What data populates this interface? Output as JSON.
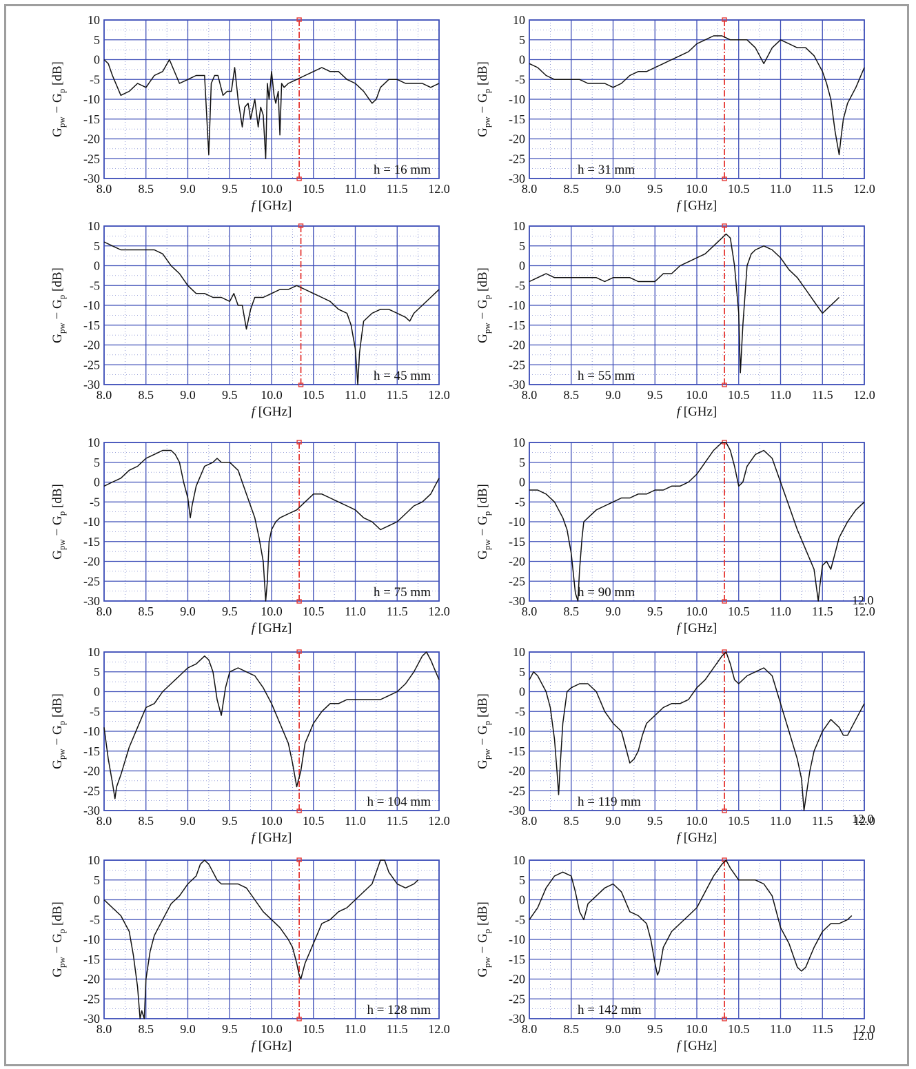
{
  "colors": {
    "grid": "#3f4fb8",
    "curve": "#111111",
    "marker": "#e53935",
    "frame": "#9e9e9e"
  },
  "ylabel_parts": {
    "a": "G",
    "a_sub": "pw",
    "dash": " − ",
    "b": "G",
    "b_sub": "p",
    "unit": " [dB]"
  },
  "xlabel_parts": {
    "f": "f",
    "unit": " [GHz]"
  },
  "x_tick_labels": [
    "8.0",
    "8.5",
    "9.0",
    "9.5",
    "10.0",
    "10.5",
    "11.0",
    "11.5",
    "12.0"
  ],
  "y_tick_labels": [
    "10",
    "5",
    "0",
    "-5",
    "-10",
    "-15",
    "-20",
    "-25",
    "-30"
  ],
  "stray_labels": [
    "12.0",
    "12.0",
    "12.0"
  ],
  "chart_data": [
    {
      "type": "line",
      "annotation": "h = 16 mm",
      "xlim": [
        8.0,
        12.0
      ],
      "ylim": [
        -30,
        10
      ],
      "x_ticks": [
        8.0,
        8.5,
        9.0,
        9.5,
        10.0,
        10.5,
        11.0,
        11.5,
        12.0
      ],
      "y_ticks": [
        10,
        5,
        0,
        -5,
        -10,
        -15,
        -20,
        -25,
        -30
      ],
      "grid": true,
      "marker_x": 10.33,
      "x": [
        8.0,
        8.05,
        8.1,
        8.2,
        8.3,
        8.4,
        8.5,
        8.6,
        8.7,
        8.78,
        8.9,
        9.0,
        9.1,
        9.2,
        9.25,
        9.28,
        9.32,
        9.36,
        9.42,
        9.47,
        9.52,
        9.56,
        9.6,
        9.65,
        9.68,
        9.72,
        9.75,
        9.8,
        9.84,
        9.87,
        9.9,
        9.93,
        9.95,
        9.97,
        10.0,
        10.03,
        10.05,
        10.08,
        10.1,
        10.12,
        10.15,
        10.2,
        10.3,
        10.4,
        10.5,
        10.6,
        10.7,
        10.8,
        10.9,
        11.0,
        11.1,
        11.2,
        11.25,
        11.3,
        11.4,
        11.5,
        11.6,
        11.7,
        11.8,
        11.9,
        12.0
      ],
      "y": [
        0,
        -1,
        -4,
        -9,
        -8,
        -6,
        -7,
        -4,
        -3,
        0,
        -6,
        -5,
        -4,
        -4,
        -24,
        -6,
        -4,
        -4,
        -9,
        -8,
        -8,
        -2,
        -10,
        -17,
        -12,
        -11,
        -15,
        -10,
        -17,
        -12,
        -14,
        -25,
        -6,
        -10,
        -3,
        -9,
        -11,
        -8,
        -19,
        -6,
        -7,
        -6,
        -5,
        -4,
        -3,
        -2,
        -3,
        -3,
        -5,
        -6,
        -8,
        -11,
        -10,
        -7,
        -5,
        -5,
        -6,
        -6,
        -6,
        -7,
        -6
      ]
    },
    {
      "type": "line",
      "annotation": "h = 31 mm",
      "xlim": [
        8.0,
        12.0
      ],
      "ylim": [
        -30,
        10
      ],
      "x_ticks": [
        8.0,
        8.5,
        9.0,
        9.5,
        10.0,
        10.5,
        11.0,
        11.5,
        12.0
      ],
      "y_ticks": [
        10,
        5,
        0,
        -5,
        -10,
        -15,
        -20,
        -25,
        -30
      ],
      "grid": true,
      "marker_x": 10.33,
      "x": [
        8.0,
        8.1,
        8.2,
        8.3,
        8.4,
        8.5,
        8.6,
        8.7,
        8.8,
        8.9,
        9.0,
        9.1,
        9.2,
        9.3,
        9.4,
        9.5,
        9.6,
        9.7,
        9.8,
        9.9,
        10.0,
        10.1,
        10.2,
        10.3,
        10.4,
        10.5,
        10.6,
        10.7,
        10.8,
        10.9,
        11.0,
        11.1,
        11.2,
        11.3,
        11.4,
        11.5,
        11.55,
        11.6,
        11.65,
        11.7,
        11.72,
        11.75,
        11.8,
        11.9,
        12.0
      ],
      "y": [
        -1,
        -2,
        -4,
        -5,
        -5,
        -5,
        -5,
        -6,
        -6,
        -6,
        -7,
        -6,
        -4,
        -3,
        -3,
        -2,
        -1,
        0,
        1,
        2,
        4,
        5,
        6,
        6,
        5,
        5,
        5,
        3,
        -1,
        3,
        5,
        4,
        3,
        3,
        1,
        -3,
        -6,
        -10,
        -18,
        -24,
        -20,
        -15,
        -11,
        -7,
        -2
      ]
    },
    {
      "type": "line",
      "annotation": "h = 45 mm",
      "xlim": [
        8.0,
        12.0
      ],
      "ylim": [
        -30,
        10
      ],
      "x_ticks": [
        8.0,
        8.5,
        9.0,
        9.5,
        10.0,
        10.5,
        11.0,
        11.5,
        12.0
      ],
      "y_ticks": [
        10,
        5,
        0,
        -5,
        -10,
        -15,
        -20,
        -25,
        -30
      ],
      "grid": true,
      "marker_x": 10.35,
      "x": [
        8.0,
        8.1,
        8.2,
        8.3,
        8.4,
        8.5,
        8.6,
        8.7,
        8.8,
        8.9,
        9.0,
        9.1,
        9.2,
        9.3,
        9.4,
        9.5,
        9.55,
        9.6,
        9.65,
        9.7,
        9.75,
        9.8,
        9.9,
        10.0,
        10.1,
        10.2,
        10.3,
        10.4,
        10.5,
        10.6,
        10.7,
        10.8,
        10.9,
        10.95,
        11.0,
        11.03,
        11.05,
        11.08,
        11.1,
        11.2,
        11.3,
        11.4,
        11.5,
        11.6,
        11.65,
        11.7,
        11.8,
        11.9,
        12.0
      ],
      "y": [
        6,
        5,
        4,
        4,
        4,
        4,
        4,
        3,
        0,
        -2,
        -5,
        -7,
        -7,
        -8,
        -8,
        -9,
        -7,
        -10,
        -10,
        -16,
        -11,
        -8,
        -8,
        -7,
        -6,
        -6,
        -5,
        -6,
        -7,
        -8,
        -9,
        -11,
        -12,
        -15,
        -21,
        -30,
        -22,
        -17,
        -14,
        -12,
        -11,
        -11,
        -12,
        -13,
        -14,
        -12,
        -10,
        -8,
        -6
      ]
    },
    {
      "type": "line",
      "annotation": "h = 55 mm",
      "xlim": [
        8.0,
        12.0
      ],
      "ylim": [
        -30,
        10
      ],
      "x_ticks": [
        8.0,
        8.5,
        9.0,
        9.5,
        10.0,
        10.5,
        11.0,
        11.5,
        12.0
      ],
      "y_ticks": [
        10,
        5,
        0,
        -5,
        -10,
        -15,
        -20,
        -25,
        -30
      ],
      "grid": true,
      "marker_x": 10.33,
      "x": [
        8.0,
        8.1,
        8.2,
        8.3,
        8.4,
        8.5,
        8.6,
        8.7,
        8.8,
        8.9,
        9.0,
        9.1,
        9.2,
        9.3,
        9.4,
        9.5,
        9.6,
        9.7,
        9.8,
        9.9,
        10.0,
        10.1,
        10.2,
        10.3,
        10.35,
        10.4,
        10.45,
        10.5,
        10.52,
        10.55,
        10.58,
        10.6,
        10.65,
        10.7,
        10.8,
        10.9,
        11.0,
        11.1,
        11.2,
        11.3,
        11.4,
        11.5,
        11.55,
        11.6,
        11.65,
        11.7
      ],
      "y": [
        -4,
        -3,
        -2,
        -3,
        -3,
        -3,
        -3,
        -3,
        -3,
        -4,
        -3,
        -3,
        -3,
        -4,
        -4,
        -4,
        -2,
        -2,
        0,
        1,
        2,
        3,
        5,
        7,
        8,
        7,
        0,
        -12,
        -27,
        -15,
        -6,
        0,
        3,
        4,
        5,
        4,
        2,
        -1,
        -3,
        -6,
        -9,
        -12,
        -11,
        -10,
        -9,
        -8
      ]
    },
    {
      "type": "line",
      "annotation": "h = 75 mm",
      "xlim": [
        8.0,
        12.0
      ],
      "ylim": [
        -30,
        10
      ],
      "x_ticks": [
        8.0,
        8.5,
        9.0,
        9.5,
        10.0,
        10.5,
        11.0,
        11.5,
        12.0
      ],
      "y_ticks": [
        10,
        5,
        0,
        -5,
        -10,
        -15,
        -20,
        -25,
        -30
      ],
      "grid": true,
      "marker_x": 10.33,
      "x": [
        8.0,
        8.1,
        8.2,
        8.3,
        8.4,
        8.5,
        8.6,
        8.7,
        8.8,
        8.85,
        8.9,
        8.95,
        9.0,
        9.03,
        9.05,
        9.1,
        9.2,
        9.3,
        9.35,
        9.4,
        9.5,
        9.6,
        9.7,
        9.8,
        9.85,
        9.9,
        9.93,
        9.95,
        9.97,
        10.0,
        10.05,
        10.1,
        10.2,
        10.3,
        10.4,
        10.5,
        10.6,
        10.7,
        10.8,
        10.9,
        11.0,
        11.1,
        11.2,
        11.3,
        11.4,
        11.5,
        11.6,
        11.7,
        11.8,
        11.9,
        12.0
      ],
      "y": [
        -1,
        0,
        1,
        3,
        4,
        6,
        7,
        8,
        8,
        7,
        5,
        0,
        -4,
        -9,
        -6,
        -1,
        4,
        5,
        6,
        5,
        5,
        3,
        -3,
        -9,
        -14,
        -20,
        -30,
        -25,
        -15,
        -12,
        -10,
        -9,
        -8,
        -7,
        -5,
        -3,
        -3,
        -4,
        -5,
        -6,
        -7,
        -9,
        -10,
        -12,
        -11,
        -10,
        -8,
        -6,
        -5,
        -3,
        1
      ]
    },
    {
      "type": "line",
      "annotation": "h = 90 mm",
      "xlim": [
        8.0,
        12.0
      ],
      "ylim": [
        -30,
        10
      ],
      "x_ticks": [
        8.0,
        8.5,
        9.0,
        9.5,
        10.0,
        10.5,
        11.0,
        11.5,
        12.0
      ],
      "y_ticks": [
        10,
        5,
        0,
        -5,
        -10,
        -15,
        -20,
        -25,
        -30
      ],
      "grid": true,
      "marker_x": 10.33,
      "x": [
        8.0,
        8.1,
        8.2,
        8.3,
        8.4,
        8.45,
        8.5,
        8.55,
        8.58,
        8.6,
        8.63,
        8.65,
        8.7,
        8.8,
        8.9,
        9.0,
        9.1,
        9.2,
        9.3,
        9.4,
        9.5,
        9.6,
        9.7,
        9.8,
        9.9,
        10.0,
        10.1,
        10.2,
        10.3,
        10.35,
        10.4,
        10.45,
        10.5,
        10.55,
        10.6,
        10.7,
        10.8,
        10.9,
        11.0,
        11.1,
        11.2,
        11.3,
        11.4,
        11.45,
        11.47,
        11.5,
        11.55,
        11.6,
        11.65,
        11.7,
        11.8,
        11.9,
        12.0
      ],
      "y": [
        -2,
        -2,
        -3,
        -5,
        -9,
        -12,
        -18,
        -28,
        -30,
        -22,
        -14,
        -10,
        -9,
        -7,
        -6,
        -5,
        -4,
        -4,
        -3,
        -3,
        -2,
        -2,
        -1,
        -1,
        0,
        2,
        5,
        8,
        10,
        10,
        8,
        4,
        -1,
        0,
        4,
        7,
        8,
        6,
        0,
        -6,
        -12,
        -17,
        -22,
        -30,
        -26,
        -21,
        -20,
        -22,
        -18,
        -14,
        -10,
        -7,
        -5
      ]
    },
    {
      "type": "line",
      "annotation": "h = 104 mm",
      "xlim": [
        8.0,
        12.0
      ],
      "ylim": [
        -30,
        10
      ],
      "x_ticks": [
        8.0,
        8.5,
        9.0,
        9.5,
        10.0,
        10.5,
        11.0,
        11.5,
        12.0
      ],
      "y_ticks": [
        10,
        5,
        0,
        -5,
        -10,
        -15,
        -20,
        -25,
        -30
      ],
      "grid": true,
      "marker_x": 10.33,
      "x": [
        8.0,
        8.05,
        8.1,
        8.13,
        8.15,
        8.2,
        8.3,
        8.4,
        8.5,
        8.6,
        8.7,
        8.8,
        8.9,
        9.0,
        9.1,
        9.2,
        9.25,
        9.3,
        9.35,
        9.4,
        9.45,
        9.5,
        9.6,
        9.7,
        9.8,
        9.9,
        10.0,
        10.1,
        10.2,
        10.25,
        10.3,
        10.35,
        10.4,
        10.5,
        10.6,
        10.7,
        10.8,
        10.9,
        11.0,
        11.1,
        11.2,
        11.3,
        11.4,
        11.5,
        11.6,
        11.7,
        11.8,
        11.85,
        11.9,
        12.0
      ],
      "y": [
        -9,
        -17,
        -23,
        -27,
        -24,
        -21,
        -14,
        -9,
        -4,
        -3,
        0,
        2,
        4,
        6,
        7,
        9,
        8,
        5,
        -2,
        -6,
        1,
        5,
        6,
        5,
        4,
        1,
        -3,
        -8,
        -13,
        -18,
        -24,
        -20,
        -13,
        -8,
        -5,
        -3,
        -3,
        -2,
        -2,
        -2,
        -2,
        -2,
        -1,
        0,
        2,
        5,
        9,
        10,
        8,
        3
      ]
    },
    {
      "type": "line",
      "annotation": "h = 119 mm",
      "xlim": [
        8.0,
        12.0
      ],
      "ylim": [
        -30,
        10
      ],
      "x_ticks": [
        8.0,
        8.5,
        9.0,
        9.5,
        10.0,
        10.5,
        11.0,
        11.5,
        12.0
      ],
      "y_ticks": [
        10,
        5,
        0,
        -5,
        -10,
        -15,
        -20,
        -25,
        -30
      ],
      "grid": true,
      "marker_x": 10.33,
      "x": [
        8.0,
        8.05,
        8.1,
        8.2,
        8.25,
        8.3,
        8.33,
        8.35,
        8.37,
        8.4,
        8.45,
        8.5,
        8.6,
        8.7,
        8.8,
        8.9,
        9.0,
        9.1,
        9.2,
        9.25,
        9.3,
        9.35,
        9.4,
        9.5,
        9.6,
        9.7,
        9.8,
        9.9,
        10.0,
        10.1,
        10.2,
        10.3,
        10.35,
        10.4,
        10.45,
        10.5,
        10.6,
        10.7,
        10.8,
        10.9,
        11.0,
        11.1,
        11.2,
        11.25,
        11.28,
        11.3,
        11.35,
        11.4,
        11.5,
        11.6,
        11.7,
        11.75,
        11.8,
        11.9,
        12.0
      ],
      "y": [
        3,
        5,
        4,
        0,
        -4,
        -12,
        -20,
        -26,
        -18,
        -8,
        0,
        1,
        2,
        2,
        0,
        -5,
        -8,
        -10,
        -18,
        -17,
        -15,
        -11,
        -8,
        -6,
        -4,
        -3,
        -3,
        -2,
        1,
        3,
        6,
        9,
        10,
        7,
        3,
        2,
        4,
        5,
        6,
        4,
        -3,
        -10,
        -17,
        -22,
        -30,
        -27,
        -20,
        -15,
        -10,
        -7,
        -9,
        -11,
        -11,
        -7,
        -3
      ]
    },
    {
      "type": "line",
      "annotation": "h = 128 mm",
      "xlim": [
        8.0,
        12.0
      ],
      "ylim": [
        -30,
        10
      ],
      "x_ticks": [
        8.0,
        8.5,
        9.0,
        9.5,
        10.0,
        10.5,
        11.0,
        11.5,
        12.0
      ],
      "y_ticks": [
        10,
        5,
        0,
        -5,
        -10,
        -15,
        -20,
        -25,
        -30
      ],
      "grid": true,
      "marker_x": 10.33,
      "x": [
        8.0,
        8.05,
        8.1,
        8.2,
        8.3,
        8.35,
        8.4,
        8.43,
        8.45,
        8.48,
        8.5,
        8.55,
        8.6,
        8.7,
        8.8,
        8.9,
        9.0,
        9.1,
        9.15,
        9.2,
        9.25,
        9.3,
        9.35,
        9.4,
        9.5,
        9.6,
        9.7,
        9.8,
        9.9,
        10.0,
        10.1,
        10.2,
        10.25,
        10.3,
        10.33,
        10.35,
        10.4,
        10.5,
        10.6,
        10.7,
        10.8,
        10.9,
        11.0,
        11.1,
        11.2,
        11.25,
        11.3,
        11.35,
        11.4,
        11.5,
        11.6,
        11.7,
        11.75
      ],
      "y": [
        0,
        -1,
        -2,
        -4,
        -8,
        -14,
        -22,
        -30,
        -28,
        -30,
        -20,
        -13,
        -9,
        -5,
        -1,
        1,
        4,
        6,
        9,
        10,
        9,
        7,
        5,
        4,
        4,
        4,
        3,
        0,
        -3,
        -5,
        -7,
        -10,
        -12,
        -16,
        -19,
        -20,
        -16,
        -11,
        -6,
        -5,
        -3,
        -2,
        0,
        2,
        4,
        7,
        10,
        10,
        7,
        4,
        3,
        4,
        5
      ]
    },
    {
      "type": "line",
      "annotation": "h = 142 mm",
      "xlim": [
        8.0,
        12.0
      ],
      "ylim": [
        -30,
        10
      ],
      "x_ticks": [
        8.0,
        8.5,
        9.0,
        9.5,
        10.0,
        10.5,
        11.0,
        11.5,
        12.0
      ],
      "y_ticks": [
        10,
        5,
        0,
        -5,
        -10,
        -15,
        -20,
        -25,
        -30
      ],
      "grid": true,
      "marker_x": 10.33,
      "x": [
        8.0,
        8.1,
        8.2,
        8.3,
        8.4,
        8.5,
        8.55,
        8.6,
        8.65,
        8.7,
        8.8,
        8.9,
        9.0,
        9.1,
        9.2,
        9.3,
        9.4,
        9.45,
        9.5,
        9.53,
        9.55,
        9.6,
        9.7,
        9.8,
        9.9,
        10.0,
        10.1,
        10.2,
        10.3,
        10.35,
        10.4,
        10.5,
        10.6,
        10.7,
        10.8,
        10.9,
        11.0,
        11.1,
        11.15,
        11.2,
        11.25,
        11.3,
        11.4,
        11.5,
        11.6,
        11.7,
        11.8,
        11.85
      ],
      "y": [
        -5,
        -2,
        3,
        6,
        7,
        6,
        2,
        -3,
        -5,
        -1,
        1,
        3,
        4,
        2,
        -3,
        -4,
        -6,
        -10,
        -16,
        -19,
        -18,
        -12,
        -8,
        -6,
        -4,
        -2,
        2,
        6,
        9,
        10,
        8,
        5,
        5,
        5,
        4,
        1,
        -7,
        -11,
        -14,
        -17,
        -18,
        -17,
        -12,
        -8,
        -6,
        -6,
        -5,
        -4
      ]
    }
  ]
}
